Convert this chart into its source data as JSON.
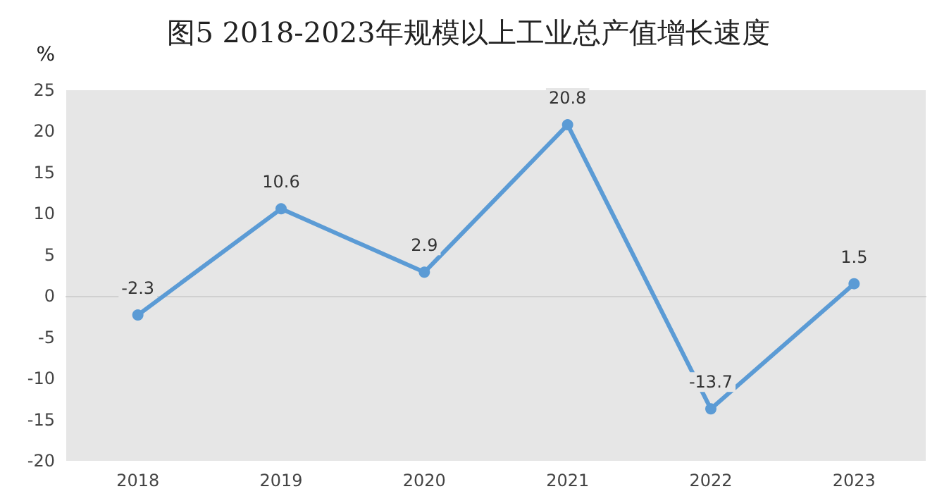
{
  "chart_data": {
    "type": "line",
    "title": "图5 2018-2023年规模以上工业总产值增长速度",
    "ylabel": "%",
    "categories": [
      "2018",
      "2019",
      "2020",
      "2021",
      "2022",
      "2023"
    ],
    "series": [
      {
        "color": "#5b9bd5",
        "values": [
          -2.3,
          10.6,
          2.9,
          20.8,
          -13.7,
          1.5
        ]
      }
    ],
    "ylim": [
      -20,
      25
    ],
    "yticks": [
      -20,
      -15,
      -10,
      -5,
      0,
      5,
      10,
      15,
      20,
      25
    ],
    "marker": "circle",
    "line_style": "solid",
    "data_labels": true
  }
}
